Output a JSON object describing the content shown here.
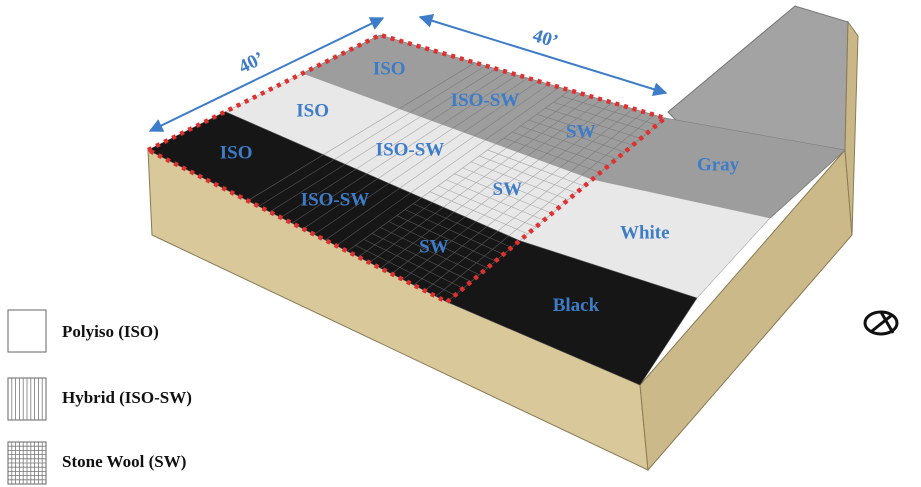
{
  "dimensions": [
    "40’",
    "40’"
  ],
  "grid_rows": [
    [
      "ISO",
      "ISO-SW",
      "SW"
    ],
    [
      "ISO",
      "ISO-SW",
      "SW"
    ],
    [
      "ISO",
      "ISO-SW",
      "SW"
    ]
  ],
  "reference": [
    "Gray",
    "White",
    "Black"
  ],
  "legend": [
    "Polyiso (ISO)",
    "Hybrid (ISO-SW)",
    "Stone Wool (SW)"
  ]
}
